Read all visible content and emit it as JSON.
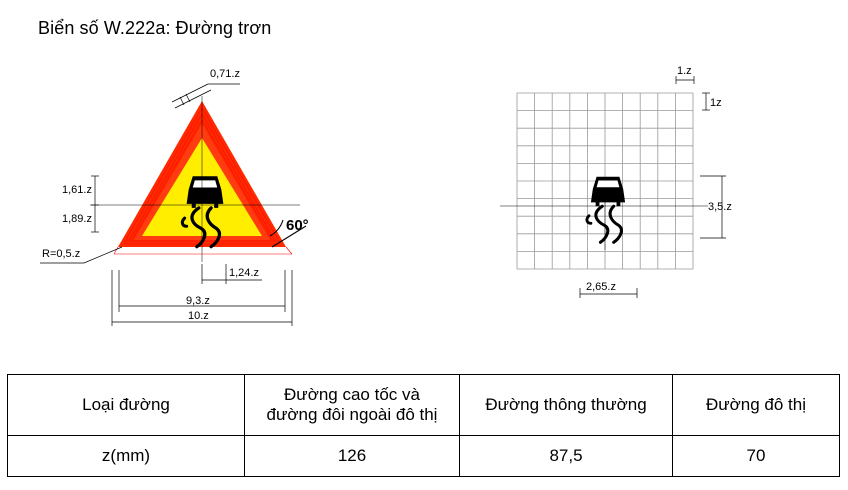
{
  "title": "Biển số W.222a: Đường trơn",
  "dims": {
    "tip": "0,71.z",
    "h1": "1,61.z",
    "h2": "1,89.z",
    "radius": "R=0,5.z",
    "angle": "60°",
    "base1": "1,24.z",
    "inner_width": "9,3.z",
    "outer_width": "10.z",
    "cell_w": "1.z",
    "cell_h": "1z",
    "symbol_h": "3,5.z",
    "symbol_w": "2,65.z"
  },
  "colors": {
    "border": "#ff2a00",
    "fill": "#ffee00",
    "grid": "#9a9a9a"
  },
  "table": {
    "header": [
      "Loại đường",
      [
        "Đường cao tốc và",
        "đường đôi ngoài đô thị"
      ],
      "Đường thông thường",
      "Đường đô thị"
    ],
    "row": [
      "z(mm)",
      "126",
      "87,5",
      "70"
    ]
  }
}
